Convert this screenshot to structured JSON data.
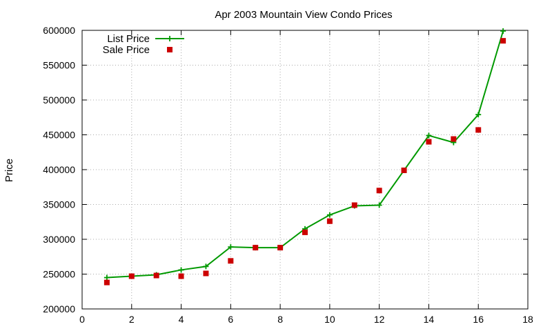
{
  "chart_data": {
    "type": "line",
    "title": "Apr 2003 Mountain View Condo Prices",
    "xlabel": "",
    "ylabel": "Price",
    "xlim": [
      0,
      18
    ],
    "ylim": [
      200000,
      600000
    ],
    "xticks": [
      0,
      2,
      4,
      6,
      8,
      10,
      12,
      14,
      16,
      18
    ],
    "yticks": [
      200000,
      250000,
      300000,
      350000,
      400000,
      450000,
      500000,
      550000,
      600000
    ],
    "grid": true,
    "legend_position": "top-left",
    "series": [
      {
        "name": "List Price",
        "style": "line+plus",
        "color": "#009900",
        "x": [
          1,
          2,
          3,
          4,
          5,
          6,
          7,
          8,
          9,
          10,
          11,
          12,
          13,
          14,
          15,
          16,
          17
        ],
        "y": [
          245000,
          247000,
          249000,
          256000,
          261000,
          289000,
          288000,
          288000,
          315000,
          335000,
          348000,
          349000,
          399000,
          449000,
          439000,
          479000,
          599000
        ]
      },
      {
        "name": "Sale Price",
        "style": "points",
        "color": "#cc0000",
        "x": [
          1,
          2,
          3,
          4,
          5,
          6,
          7,
          8,
          9,
          10,
          11,
          12,
          13,
          14,
          15,
          16,
          17
        ],
        "y": [
          238000,
          247000,
          248000,
          247000,
          251000,
          269000,
          288000,
          288000,
          310000,
          326000,
          349000,
          370000,
          399000,
          440000,
          444000,
          457000,
          585000
        ]
      }
    ]
  }
}
